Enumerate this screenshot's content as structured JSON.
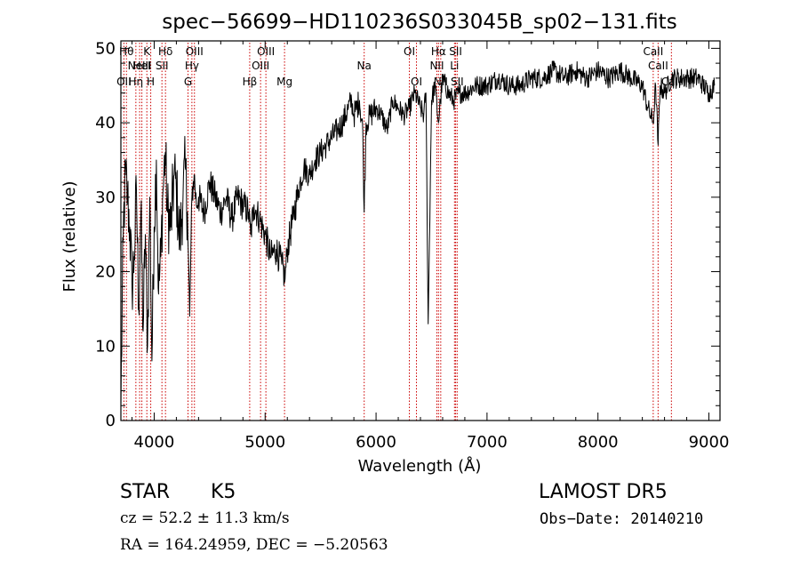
{
  "chart_data": {
    "type": "line",
    "title": "spec−56699−HD110236S033045B_sp02−131.fits",
    "xlabel": "Wavelength (Å)",
    "ylabel": "Flux (relative)",
    "xlim": [
      3700,
      9100
    ],
    "ylim": [
      0,
      51
    ],
    "x_ticks": [
      {
        "value": 4000,
        "label": "4000"
      },
      {
        "value": 5000,
        "label": "5000"
      },
      {
        "value": 6000,
        "label": "6000"
      },
      {
        "value": 7000,
        "label": "7000"
      },
      {
        "value": 8000,
        "label": "8000"
      },
      {
        "value": 9000,
        "label": "9000"
      }
    ],
    "y_ticks": [
      {
        "value": 0,
        "label": "0"
      },
      {
        "value": 10,
        "label": "10"
      },
      {
        "value": 20,
        "label": "20"
      },
      {
        "value": 30,
        "label": "30"
      },
      {
        "value": 40,
        "label": "40"
      },
      {
        "value": 50,
        "label": "50"
      }
    ],
    "grid": false,
    "series": [
      {
        "x": [
          3700,
          3720,
          3740,
          3760,
          3780,
          3800,
          3820,
          3840,
          3860,
          3880,
          3900,
          3920,
          3940,
          3960,
          3980,
          4000,
          4020,
          4040,
          4060,
          4080,
          4100,
          4120,
          4150,
          4180,
          4200,
          4230,
          4260,
          4280,
          4300,
          4320,
          4340,
          4360,
          4380,
          4400,
          4450,
          4500,
          4550,
          4600,
          4650,
          4700,
          4750,
          4800,
          4850,
          4870,
          4900,
          4950,
          5000,
          5050,
          5100,
          5150,
          5180,
          5200,
          5250,
          5300,
          5350,
          5400,
          5450,
          5500,
          5550,
          5600,
          5650,
          5700,
          5750,
          5780,
          5800,
          5850,
          5880,
          5893,
          5910,
          5950,
          6000,
          6050,
          6100,
          6150,
          6200,
          6250,
          6300,
          6350,
          6400,
          6430,
          6450,
          6470,
          6500,
          6530,
          6563,
          6580,
          6600,
          6650,
          6700,
          6750,
          6800,
          6900,
          7000,
          7100,
          7200,
          7300,
          7400,
          7500,
          7600,
          7700,
          7800,
          7900,
          8000,
          8100,
          8200,
          8300,
          8400,
          8450,
          8498,
          8520,
          8542,
          8560,
          8600,
          8662,
          8700,
          8800,
          8900,
          9000,
          9050
        ],
        "y": [
          2,
          24,
          33,
          30,
          26,
          18,
          22,
          31,
          15,
          28,
          12,
          25,
          10,
          30,
          8,
          26,
          35,
          17,
          22,
          31,
          36,
          28,
          26,
          33,
          31,
          24,
          30,
          34,
          28,
          14,
          30,
          33,
          29,
          30,
          28,
          32,
          30,
          28,
          30,
          27,
          30,
          29,
          28,
          25,
          29,
          27,
          25,
          22,
          23,
          21,
          19,
          23,
          27,
          31,
          34,
          33,
          35,
          36,
          37,
          38,
          39,
          40,
          42,
          43,
          41,
          43,
          39,
          28,
          40,
          41,
          42,
          41,
          39,
          43,
          42,
          41,
          42,
          44,
          42,
          41,
          44,
          13,
          43,
          45,
          40,
          43,
          46,
          44,
          43,
          44,
          44,
          45,
          45,
          46,
          45,
          45,
          46,
          46,
          47,
          46,
          47,
          46,
          47,
          46,
          47,
          46,
          45,
          42,
          40,
          45,
          37,
          45,
          44,
          46,
          46,
          46,
          46,
          44,
          45
        ]
      }
    ],
    "lines": [
      {
        "wavelength": 3727,
        "labels": [
          "OII"
        ],
        "row": 3
      },
      {
        "wavelength": 3750,
        "labels": [
          "Hθ"
        ],
        "row": 1
      },
      {
        "wavelength": 3835,
        "labels": [
          "Hη"
        ],
        "row": 3
      },
      {
        "wavelength": 3869,
        "labels": [
          "NeIII"
        ],
        "row": 2
      },
      {
        "wavelength": 3889,
        "labels": [
          "HeI"
        ],
        "row": 2
      },
      {
        "wavelength": 3934,
        "labels": [
          "K"
        ],
        "row": 1
      },
      {
        "wavelength": 3969,
        "labels": [
          "H"
        ],
        "row": 3
      },
      {
        "wavelength": 4070,
        "labels": [
          "SII"
        ],
        "row": 2
      },
      {
        "wavelength": 4102,
        "labels": [
          "Hδ"
        ],
        "row": 1
      },
      {
        "wavelength": 4305,
        "labels": [
          "G"
        ],
        "row": 3
      },
      {
        "wavelength": 4340,
        "labels": [
          "Hγ"
        ],
        "row": 2
      },
      {
        "wavelength": 4363,
        "labels": [
          "OIII"
        ],
        "row": 1
      },
      {
        "wavelength": 4861,
        "labels": [
          "Hβ"
        ],
        "row": 3
      },
      {
        "wavelength": 4959,
        "labels": [
          "OIII"
        ],
        "row": 2
      },
      {
        "wavelength": 5007,
        "labels": [
          "OIII"
        ],
        "row": 1
      },
      {
        "wavelength": 5175,
        "labels": [
          "Mg"
        ],
        "row": 3
      },
      {
        "wavelength": 5893,
        "labels": [
          "Na"
        ],
        "row": 2
      },
      {
        "wavelength": 6300,
        "labels": [
          "OI"
        ],
        "row": 1
      },
      {
        "wavelength": 6364,
        "labels": [
          "OI"
        ],
        "row": 3
      },
      {
        "wavelength": 6548,
        "labels": [
          "NII"
        ],
        "row": 2
      },
      {
        "wavelength": 6563,
        "labels": [
          "Hα"
        ],
        "row": 1
      },
      {
        "wavelength": 6583,
        "labels": [
          "NII"
        ],
        "row": 3
      },
      {
        "wavelength": 6707,
        "labels": [
          "Li"
        ],
        "row": 2
      },
      {
        "wavelength": 6717,
        "labels": [
          "SII"
        ],
        "row": 1
      },
      {
        "wavelength": 6731,
        "labels": [
          "SII"
        ],
        "row": 3
      },
      {
        "wavelength": 8498,
        "labels": [
          "CaII"
        ],
        "row": 1
      },
      {
        "wavelength": 8542,
        "labels": [
          "CaII"
        ],
        "row": 2
      },
      {
        "wavelength": 8662,
        "labels": [
          "CaII"
        ],
        "row": 3
      }
    ],
    "colors": {
      "spectrum": "#000000",
      "lines": "#cc0000",
      "axes": "#000000"
    }
  },
  "info": {
    "object_class": "STAR",
    "subclass": "K5",
    "survey": "LAMOST  DR5",
    "velocity": "cz = 52.2 ± 11.3 km/s",
    "obs_date": "Obs−Date: 20140210",
    "coords": "RA = 164.24959, DEC =  −5.20563"
  }
}
